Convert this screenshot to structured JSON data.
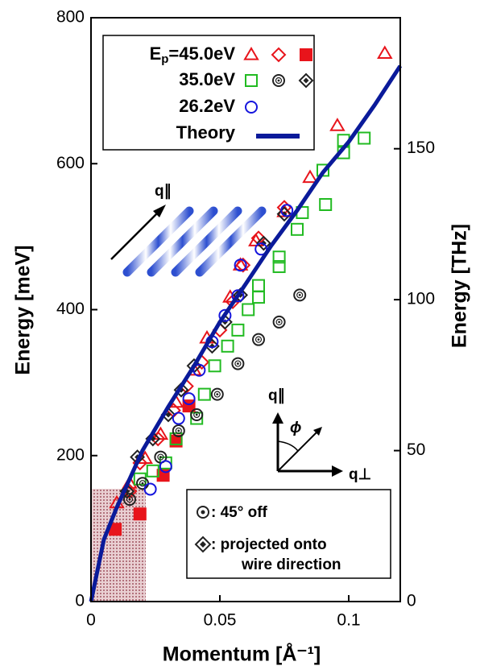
{
  "chart_data": {
    "type": "scatter",
    "xlabel": "Momentum [Å⁻¹]",
    "ylabel": "Energy [meV]",
    "y2label": "Energy [THz]",
    "xlim": [
      0,
      0.12
    ],
    "ylim": [
      0,
      800
    ],
    "y2lim": [
      0,
      193.4
    ],
    "xticks": [
      0,
      0.05,
      0.1
    ],
    "yticks": [
      0,
      200,
      400,
      600,
      800
    ],
    "y2ticks": [
      0,
      50,
      100,
      150
    ],
    "legend_prefix": {
      "text": "E",
      "sub": "p"
    },
    "series": [
      {
        "name": "=45.0eV",
        "marker": "triangle",
        "color": "#e8141b",
        "x": [
          0.114,
          0.0956,
          0.085,
          0.075,
          0.064,
          0.058,
          0.054,
          0.045,
          0.04,
          0.033,
          0.027,
          0.021,
          0.015,
          0.01
        ],
        "values": [
          751,
          652,
          581,
          534,
          494,
          461,
          417,
          361,
          317,
          273,
          229,
          196,
          162,
          135
        ]
      },
      {
        "marker": "diamond",
        "color": "#e8141b",
        "x": [
          0.075,
          0.065,
          0.059,
          0.055,
          0.05,
          0.043,
          0.037,
          0.032,
          0.026,
          0.019,
          0.015
        ],
        "values": [
          540,
          498,
          461,
          411,
          372,
          328,
          295,
          262,
          223,
          190,
          151
        ]
      },
      {
        "marker": "filled-square",
        "color": "#e8141b",
        "x": [
          0.0094,
          0.019,
          0.028,
          0.033,
          0.038
        ],
        "values": [
          99,
          120,
          173,
          220,
          268
        ]
      },
      {
        "name": "35.0eV",
        "marker": "square",
        "color": "#22bb22",
        "x": [
          0.106,
          0.098,
          0.098,
          0.09,
          0.091,
          0.082,
          0.08,
          0.073,
          0.073,
          0.065,
          0.065,
          0.061,
          0.057,
          0.053,
          0.048,
          0.044,
          0.041,
          0.033,
          0.029,
          0.024,
          0.019
        ],
        "values": [
          635,
          632,
          615,
          591,
          544,
          533,
          510,
          472,
          459,
          433,
          417,
          400,
          372,
          350,
          323,
          284,
          251,
          223,
          190,
          179,
          168
        ]
      },
      {
        "marker": "dot-circle",
        "color": "#222222",
        "x": [
          0.081,
          0.073,
          0.065,
          0.057,
          0.049,
          0.041,
          0.034,
          0.027,
          0.02,
          0.015
        ],
        "values": [
          420,
          383,
          359,
          326,
          284,
          256,
          234,
          198,
          162,
          140
        ]
      },
      {
        "marker": "dot-diamond",
        "color": "#222222",
        "x": [
          0.075,
          0.067,
          0.058,
          0.052,
          0.047,
          0.04,
          0.035,
          0.03,
          0.024,
          0.018,
          0.014
        ],
        "values": [
          531,
          491,
          420,
          383,
          350,
          323,
          290,
          256,
          223,
          198,
          151
        ]
      },
      {
        "name": "26.2eV",
        "marker": "circle",
        "color": "#1515dd",
        "x": [
          0.076,
          0.066,
          0.058,
          0.057,
          0.052,
          0.047,
          0.042,
          0.038,
          0.034,
          0.029,
          0.023
        ],
        "values": [
          536,
          483,
          461,
          419,
          392,
          356,
          317,
          278,
          251,
          185,
          154
        ]
      },
      {
        "name": "Theory",
        "marker": "line",
        "color": "#0a1a9a",
        "x": [
          0,
          0.005,
          0.01,
          0.02,
          0.03,
          0.04,
          0.05,
          0.06,
          0.07,
          0.08,
          0.09,
          0.1,
          0.11,
          0.12
        ],
        "values": [
          0,
          85,
          129,
          207,
          267,
          323,
          383,
          435,
          488,
          536,
          588,
          630,
          680,
          734
        ]
      }
    ],
    "annotations": {
      "q_par": "q∥",
      "q_par2": "q∥",
      "phi": "ϕ",
      "q_perp": "q⊥",
      "note_off": ":  45° off",
      "note_proj1": ":  projected onto",
      "note_proj2": "wire direction"
    }
  }
}
